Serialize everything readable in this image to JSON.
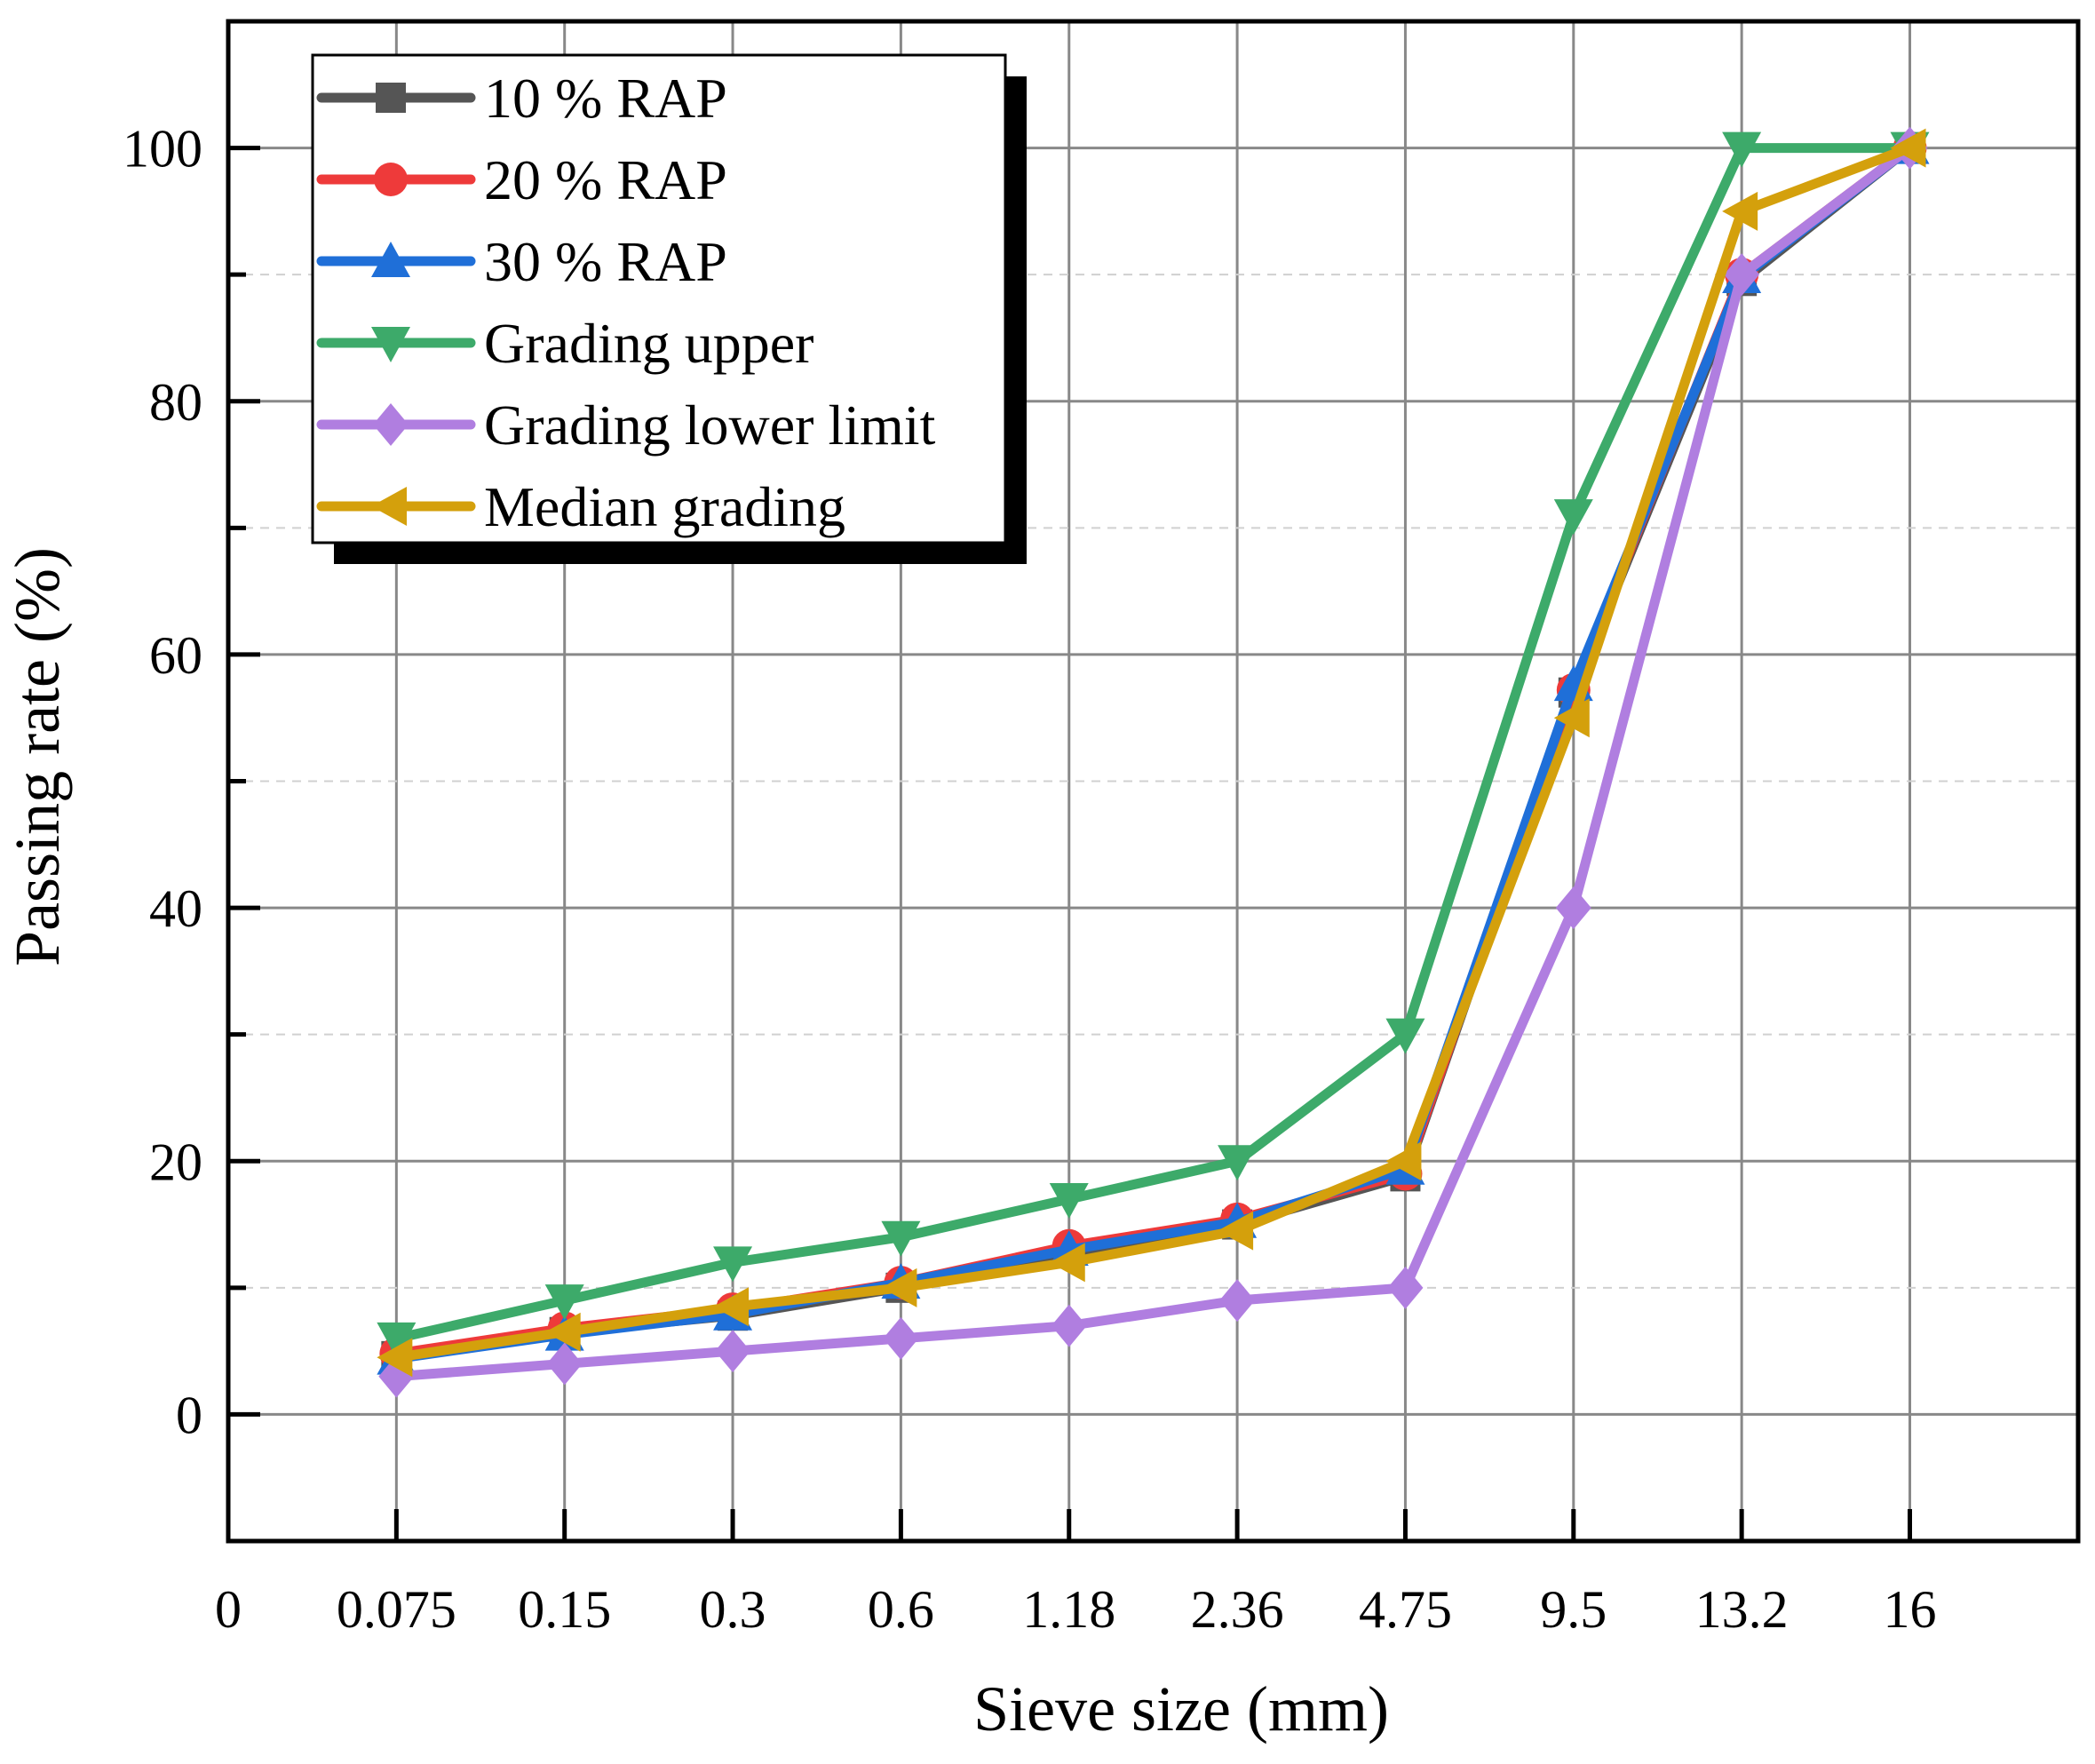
{
  "chart_data": {
    "type": "line",
    "title": "",
    "xlabel": "Sieve size (mm)",
    "ylabel": "Passing rate (%)",
    "x_tick_labels": [
      "0",
      "0.075",
      "0.15",
      "0.3",
      "0.6",
      "1.18",
      "2.36",
      "4.75",
      "9.5",
      "13.2",
      "16"
    ],
    "x_positions": [
      0,
      1,
      2,
      3,
      4,
      5,
      6,
      7,
      8,
      9,
      10
    ],
    "xlim": [
      0,
      11
    ],
    "y_tick_labels": [
      "0",
      "20",
      "40",
      "60",
      "80",
      "100"
    ],
    "y_ticks": [
      0,
      20,
      40,
      60,
      80,
      100
    ],
    "ylim": [
      -10,
      110
    ],
    "grid": true,
    "legend_position": "top-left",
    "series": [
      {
        "name": "10 % RAP",
        "marker": "square",
        "color": "#555555",
        "x": [
          1,
          2,
          3,
          4,
          5,
          6,
          7,
          8,
          9,
          10
        ],
        "values": [
          4.6,
          6.5,
          7.8,
          10.0,
          12.7,
          15.0,
          18.8,
          57.0,
          89.5,
          100
        ]
      },
      {
        "name": "20 % RAP",
        "marker": "circle",
        "color": "#ee3a3a",
        "x": [
          1,
          2,
          3,
          4,
          5,
          6,
          7,
          8,
          9,
          10
        ],
        "values": [
          4.8,
          6.8,
          8.3,
          10.4,
          13.3,
          15.4,
          19.0,
          57.2,
          90.0,
          100
        ]
      },
      {
        "name": "30 % RAP",
        "marker": "triangle-up",
        "color": "#1f6fd8",
        "x": [
          1,
          2,
          3,
          4,
          5,
          6,
          7,
          8,
          9,
          10
        ],
        "values": [
          4.4,
          6.3,
          7.9,
          10.4,
          13.0,
          15.2,
          19.4,
          57.6,
          89.8,
          100
        ]
      },
      {
        "name": "Grading upper",
        "marker": "triangle-down",
        "color": "#3daa6a",
        "x": [
          1,
          2,
          3,
          4,
          5,
          6,
          7,
          8,
          9,
          10
        ],
        "values": [
          6,
          9,
          12,
          14,
          17,
          20,
          30,
          71,
          100,
          100
        ]
      },
      {
        "name": "Grading lower limit",
        "marker": "diamond",
        "color": "#b07ee0",
        "x": [
          1,
          2,
          3,
          4,
          5,
          6,
          7,
          8,
          9,
          10
        ],
        "values": [
          3,
          4,
          5,
          6,
          7,
          9,
          10,
          40,
          90,
          100
        ]
      },
      {
        "name": "Median grading",
        "marker": "triangle-left",
        "color": "#d4a00c",
        "x": [
          1,
          2,
          3,
          4,
          5,
          6,
          7,
          8,
          9,
          10
        ],
        "values": [
          4.5,
          6.5,
          8.5,
          10.0,
          12.0,
          14.5,
          20.0,
          55.0,
          95.0,
          100
        ]
      }
    ]
  }
}
